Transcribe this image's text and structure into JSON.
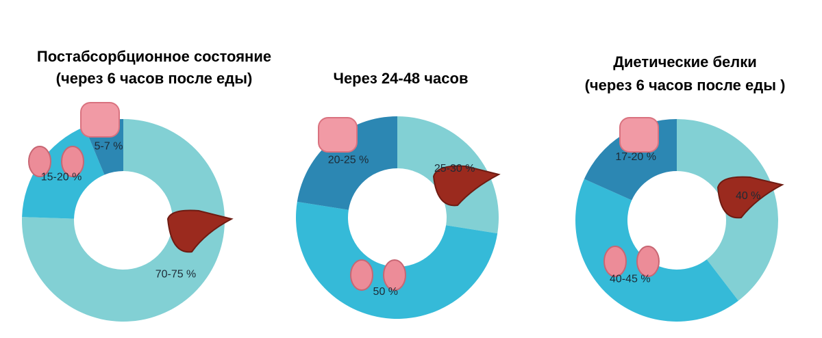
{
  "chart_data": [
    {
      "type": "donut",
      "title": [
        "Постабсорбционное состояние",
        "(через 6 часов после еды)"
      ],
      "values": [
        [
          70,
          75
        ],
        [
          15,
          20
        ],
        [
          5,
          7
        ]
      ],
      "value_labels": [
        "70-75 %",
        "15-20 %",
        "5-7 %"
      ],
      "colors": [
        "#82d0d4",
        "#35bad8",
        "#2c87b3"
      ]
    },
    {
      "type": "donut",
      "title": [
        "Через 24-48 часов"
      ],
      "values": [
        [
          25,
          30
        ],
        50,
        [
          20,
          25
        ]
      ],
      "value_labels": [
        "25-30 %",
        "50 %",
        "20-25 %"
      ],
      "colors": [
        "#82d0d4",
        "#35bad8",
        "#2c87b3"
      ]
    },
    {
      "type": "donut",
      "title": [
        "Диетические белки",
        "(через 6 часов после еды )"
      ],
      "values": [
        40,
        [
          40,
          45
        ],
        [
          17,
          20
        ]
      ],
      "value_labels": [
        "40 %",
        "40-45 %",
        "17-20 %"
      ],
      "colors": [
        "#82d0d4",
        "#35bad8",
        "#2c87b3"
      ]
    }
  ]
}
